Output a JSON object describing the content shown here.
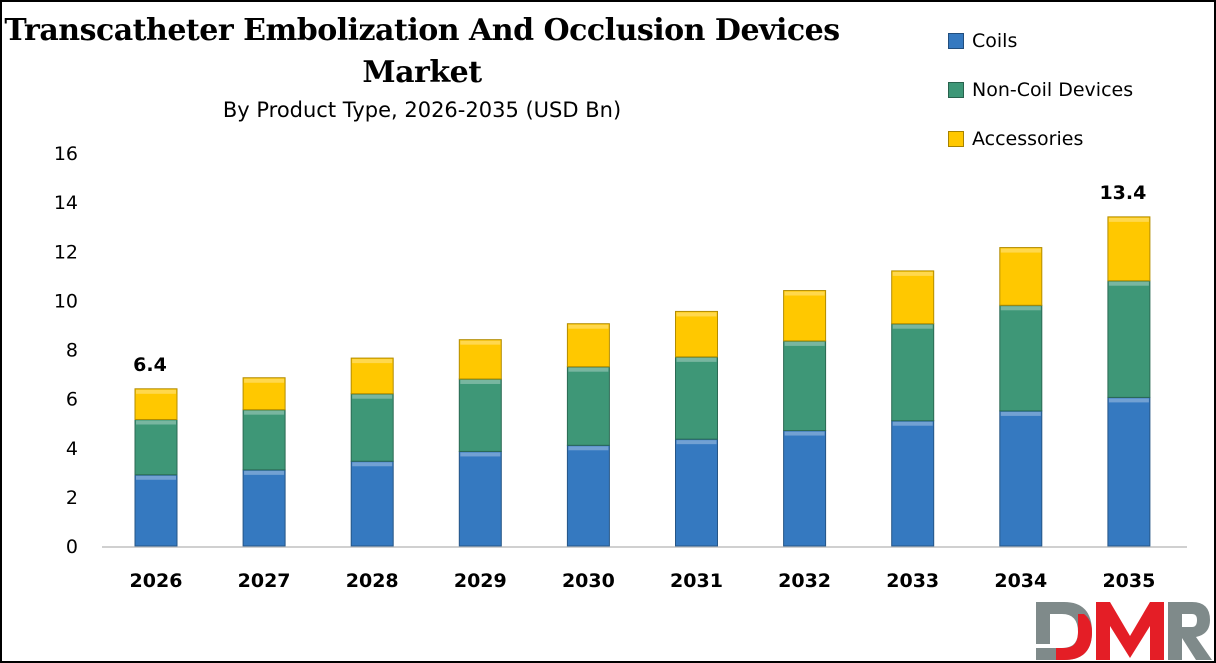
{
  "chart_data": {
    "type": "bar",
    "stacked": true,
    "title": "Transcatheter Embolization And Occlusion Devices Market",
    "subtitle": "By Product Type, 2026-2035 (USD Bn)",
    "xlabel": "",
    "ylabel": "",
    "categories": [
      "2026",
      "2027",
      "2028",
      "2029",
      "2030",
      "2031",
      "2032",
      "2033",
      "2034",
      "2035"
    ],
    "series": [
      {
        "name": "Coils",
        "color": "#3579C0",
        "values": [
          2.9,
          3.1,
          3.45,
          3.85,
          4.1,
          4.35,
          4.7,
          5.1,
          5.5,
          6.05
        ]
      },
      {
        "name": "Non-Coil Devices",
        "color": "#3E9777",
        "values": [
          2.25,
          2.45,
          2.75,
          2.95,
          3.2,
          3.35,
          3.65,
          3.95,
          4.3,
          4.75
        ]
      },
      {
        "name": "Accessories",
        "color": "#FFC800",
        "values": [
          1.25,
          1.3,
          1.45,
          1.6,
          1.75,
          1.85,
          2.05,
          2.15,
          2.35,
          2.6
        ]
      }
    ],
    "ylim": [
      0,
      16
    ],
    "yticks": [
      "0",
      "2",
      "4",
      "6",
      "8",
      "10",
      "12",
      "14",
      "16"
    ],
    "data_labels": [
      {
        "category": "2026",
        "text": "6.4"
      },
      {
        "category": "2035",
        "text": "13.4"
      }
    ],
    "grid": false,
    "legend_placement": "top-right"
  },
  "logo": {
    "text": "DMR",
    "colors": {
      "gray": "#7F8A8A",
      "red": "#E41E26"
    }
  }
}
